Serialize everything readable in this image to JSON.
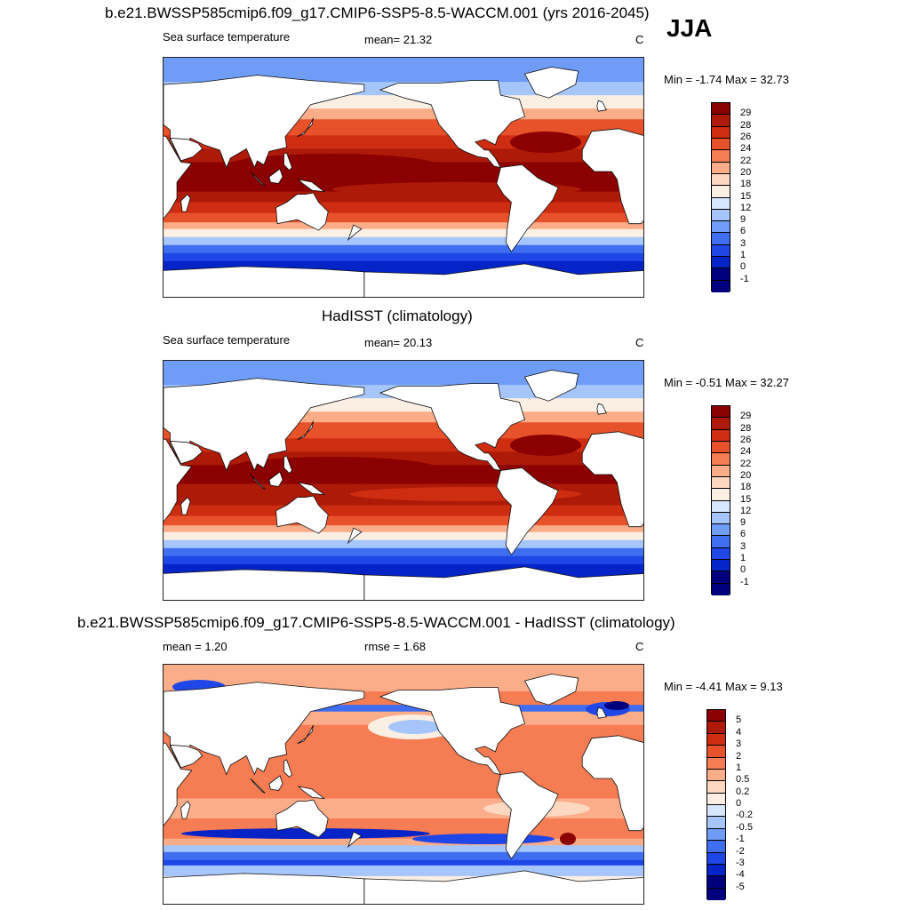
{
  "season": "JJA",
  "palette": {
    "sst": [
      "#00007f",
      "#0524c8",
      "#1f46e6",
      "#3f6ef0",
      "#6e9cf6",
      "#a6c5fb",
      "#d6e6fd",
      "#fbefe4",
      "#fdd7c0",
      "#fbac89",
      "#f57c53",
      "#e8522b",
      "#cf2d12",
      "#ad1a07",
      "#8b0000"
    ],
    "diff": [
      "#00007f",
      "#0524c8",
      "#1f46e6",
      "#3f6ef0",
      "#6e9cf6",
      "#a6c5fb",
      "#d6e6fd",
      "#fbefe4",
      "#fdd7c0",
      "#fbac89",
      "#f57c53",
      "#e8522b",
      "#cf2d12",
      "#ad1a07",
      "#8b0000"
    ]
  },
  "panels": [
    {
      "id": "model",
      "title": "b.e21.BWSSP585cmip6.f09_g17.CMIP6-SSP5-8.5-WACCM.001 (yrs 2016-2045)",
      "left_label": "Sea surface temperature",
      "center_label": "mean=  21.32",
      "units": "C",
      "minmax": "Min =  -1.74 Max =  32.73",
      "cbar_labels": [
        "29",
        "28",
        "26",
        "24",
        "22",
        "20",
        "18",
        "15",
        "12",
        "9",
        "6",
        "3",
        "1",
        "0",
        "-1"
      ],
      "variant": "sst-model"
    },
    {
      "id": "obs",
      "title": "HadISST (climatology)",
      "left_label": "Sea surface temperature",
      "center_label": "mean=  20.13",
      "units": "C",
      "minmax": "Min =  -0.51 Max =  32.27",
      "cbar_labels": [
        "29",
        "28",
        "26",
        "24",
        "22",
        "20",
        "18",
        "15",
        "12",
        "9",
        "6",
        "3",
        "1",
        "0",
        "-1"
      ],
      "variant": "sst-obs"
    },
    {
      "id": "diff",
      "title": "b.e21.BWSSP585cmip6.f09_g17.CMIP6-SSP5-8.5-WACCM.001 - HadISST (climatology)",
      "left_label": "mean =   1.20",
      "center_label": "rmse =   1.68",
      "units": "C",
      "minmax": "Min =  -4.41 Max =   9.13",
      "cbar_labels": [
        "5",
        "4",
        "3",
        "2",
        "1",
        "0.5",
        "0.2",
        "0",
        "-0.2",
        "-0.5",
        "-1",
        "-2",
        "-3",
        "-4",
        "-5"
      ],
      "variant": "diff"
    }
  ]
}
